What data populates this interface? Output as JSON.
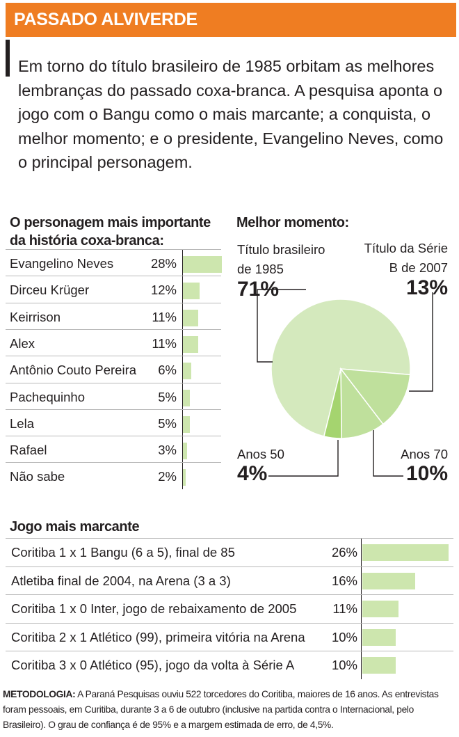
{
  "header": {
    "title": "PASSADO ALVIVERDE"
  },
  "intro": "Em torno do título brasileiro de 1985 orbitam as melhores lembranças do passado coxa-branca. A pesquisa aponta o jogo com o Bangu como o mais marcante; a conquista, o melhor momento; e o presidente, Evangelino Neves, como o principal personagem.",
  "colors": {
    "header": "#ef7d22",
    "bar": "#cde6ae",
    "pie_main": "#d4e9bd",
    "pie_mid": "#bfe09c",
    "pie_dark": "#a5d46f",
    "text": "#231f20"
  },
  "chart_data": [
    {
      "type": "bar",
      "title": "O personagem mais importante da história coxa-branca:",
      "title_lines": [
        "O personagem mais importante",
        "da história coxa-branca:"
      ],
      "categories": [
        "Evangelino Neves",
        "Dirceu Krüger",
        "Keirrison",
        "Alex",
        "Antônio Couto Pereira",
        "Pachequinho",
        "Lela",
        "Rafael",
        "Não sabe"
      ],
      "values": [
        28,
        12,
        11,
        11,
        6,
        5,
        5,
        3,
        2
      ],
      "value_labels": [
        "28%",
        "12%",
        "11%",
        "11%",
        "6%",
        "5%",
        "5%",
        "3%",
        "2%"
      ]
    },
    {
      "type": "pie",
      "title": "Melhor momento:",
      "slices": [
        {
          "label": "Título brasileiro de 1985",
          "label_lines": [
            "Título brasileiro",
            "de 1985"
          ],
          "value": 71,
          "pct": "71%"
        },
        {
          "label": "Título da Série B de 2007",
          "label_lines": [
            "Título da Série",
            "B de 2007"
          ],
          "value": 13,
          "pct": "13%"
        },
        {
          "label": "Anos 70",
          "label_lines": [
            "Anos 70"
          ],
          "value": 10,
          "pct": "10%"
        },
        {
          "label": "Anos 50",
          "label_lines": [
            "Anos 50"
          ],
          "value": 4,
          "pct": "4%"
        }
      ]
    },
    {
      "type": "bar",
      "title": "Jogo mais marcante",
      "categories": [
        "Coritiba 1 x 1 Bangu (6 a 5), final de 85",
        "Atletiba final de 2004, na Arena (3 a 3)",
        "Coritiba 1 x 0 Inter, jogo de rebaixamento de 2005",
        "Coritiba 2 x 1 Atlético (99), primeira vitória na Arena",
        "Coritiba 3 x 0 Atlético (95), jogo da volta à Série A"
      ],
      "values": [
        26,
        16,
        11,
        10,
        10
      ],
      "value_labels": [
        "26%",
        "16%",
        "11%",
        "10%",
        "10%"
      ]
    }
  ],
  "methodology": {
    "label": "METODOLOGIA:",
    "text": " A Paraná Pesquisas ouviu 522 torcedores do Coritiba, maiores de 16 anos. As entrevistas foram pessoais, em Curitiba, durante 3 a 6 de outubro (inclusive na partida contra o Internacional, pelo Brasileiro). O grau de confiança é de 95% e a margem estimada de erro, de 4,5%."
  }
}
